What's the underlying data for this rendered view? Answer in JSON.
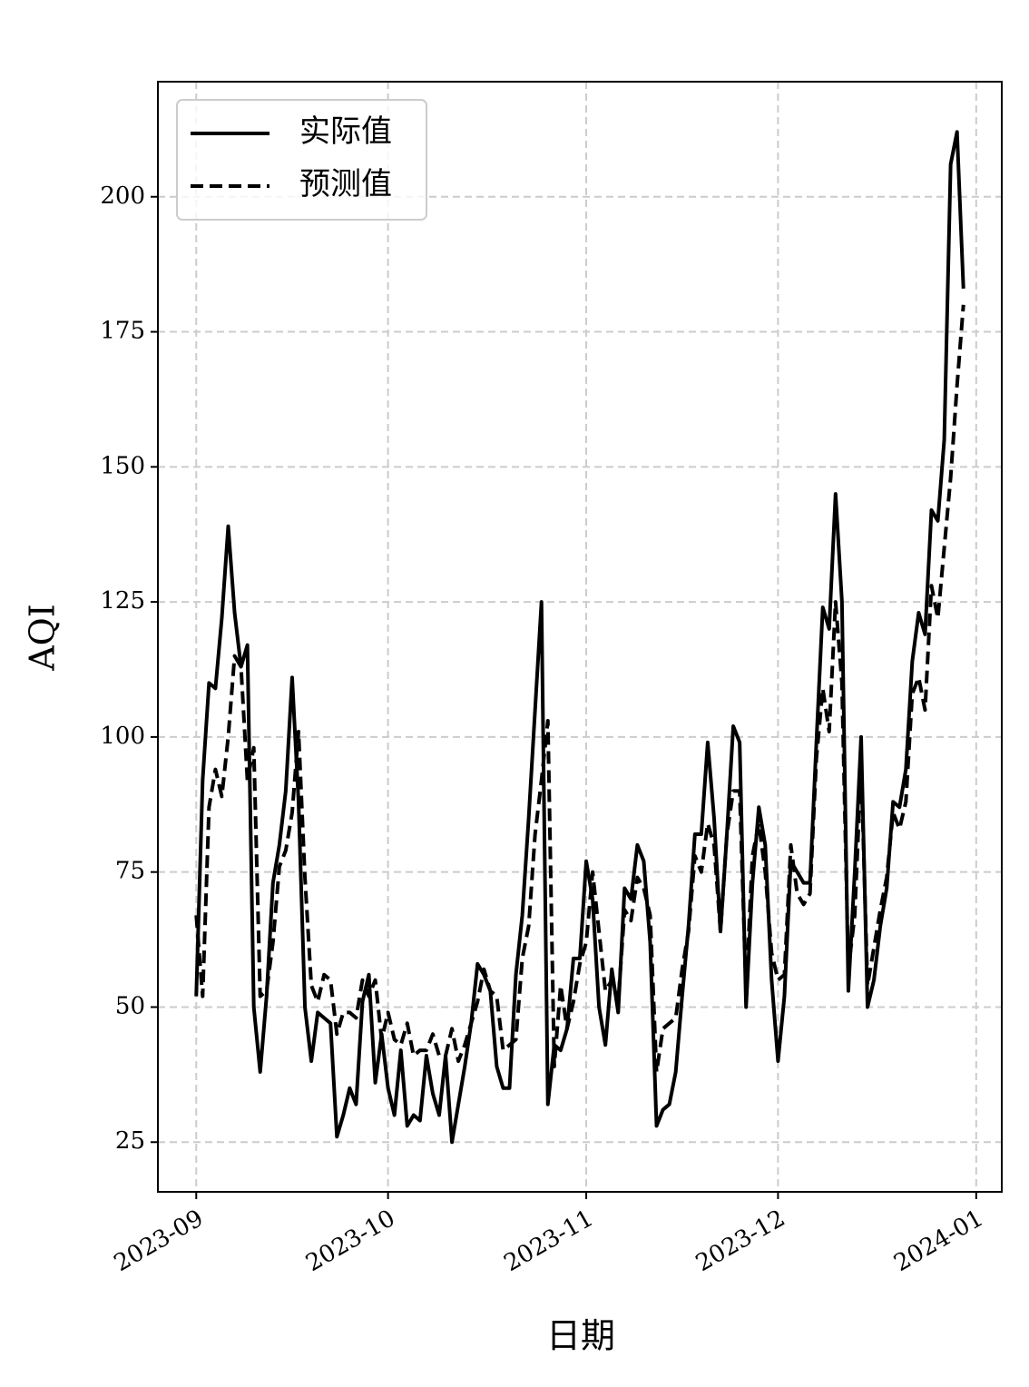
{
  "chart_data": {
    "type": "line",
    "x_label": "日期",
    "y_label": "AQI",
    "x": [
      0,
      1,
      2,
      3,
      4,
      5,
      6,
      7,
      8,
      9,
      10,
      11,
      12,
      13,
      14,
      15,
      16,
      17,
      18,
      19,
      20,
      21,
      22,
      23,
      24,
      25,
      26,
      27,
      28,
      29,
      30,
      31,
      32,
      33,
      34,
      35,
      36,
      37,
      38,
      39,
      40,
      41,
      42,
      43,
      44,
      45,
      46,
      47,
      48,
      49,
      50,
      51,
      52,
      53,
      54,
      55,
      56,
      57,
      58,
      59,
      60,
      61,
      62,
      63,
      64,
      65,
      66,
      67,
      68,
      69,
      70,
      71,
      72,
      73,
      74,
      75,
      76,
      77,
      78,
      79,
      80,
      81,
      82,
      83,
      84,
      85,
      86,
      87,
      88,
      89,
      90,
      91,
      92,
      93,
      94,
      95,
      96,
      97,
      98,
      99,
      100,
      101,
      102,
      103,
      104,
      105,
      106,
      107,
      108,
      109,
      110,
      111,
      112,
      113,
      114,
      115,
      116,
      117,
      118,
      119,
      120
    ],
    "series": [
      {
        "name": "实际值",
        "color": "#000000",
        "linestyle": "solid",
        "values": [
          52,
          92,
          110,
          109,
          122,
          139,
          123,
          113,
          117,
          50,
          38,
          52,
          73,
          80,
          90,
          111,
          88,
          50,
          40,
          49,
          48,
          47,
          26,
          30,
          35,
          32,
          51,
          56,
          36,
          45,
          35,
          30,
          42,
          28,
          30,
          29,
          41,
          34,
          30,
          41,
          25,
          32,
          39,
          47,
          58,
          56,
          53,
          39,
          35,
          35,
          56,
          67,
          85,
          105,
          125,
          32,
          43,
          42,
          46,
          59,
          59,
          77,
          70,
          50,
          43,
          57,
          49,
          72,
          70,
          80,
          77,
          62,
          28,
          31,
          32,
          38,
          52,
          65,
          82,
          82,
          99,
          85,
          64,
          82,
          102,
          99,
          50,
          73,
          87,
          80,
          55,
          40,
          52,
          77,
          75,
          73,
          73,
          99,
          124,
          120,
          145,
          125,
          53,
          75,
          100,
          50,
          55,
          65,
          72,
          88,
          87,
          94,
          114,
          123,
          119,
          142,
          140,
          155,
          206,
          212,
          183
        ]
      },
      {
        "name": "预测值",
        "color": "#000000",
        "linestyle": "dashed",
        "values": [
          67,
          52,
          87,
          94,
          89,
          100,
          115,
          113,
          92,
          98,
          52,
          53,
          62,
          76,
          79,
          86,
          101,
          74,
          54,
          51,
          56,
          55,
          45,
          49,
          49,
          48,
          55,
          52,
          55,
          44,
          49,
          44,
          43,
          47,
          41,
          42,
          42,
          45,
          41,
          41,
          46,
          40,
          43,
          47,
          51,
          57,
          53,
          52,
          42,
          43,
          44,
          59,
          65,
          82,
          92,
          103,
          39,
          54,
          46,
          51,
          58,
          62,
          75,
          64,
          53,
          55,
          51,
          68,
          66,
          74,
          72,
          67,
          38,
          46,
          47,
          48,
          57,
          64,
          78,
          75,
          84,
          80,
          64,
          82,
          90,
          90,
          53,
          78,
          84,
          75,
          60,
          55,
          56,
          80,
          71,
          69,
          71,
          96,
          109,
          101,
          125,
          110,
          57,
          67,
          95,
          54,
          61,
          68,
          74,
          86,
          83,
          88,
          108,
          111,
          105,
          128,
          122,
          135,
          148,
          165,
          180
        ]
      }
    ],
    "xlim": [
      -6,
      126
    ],
    "xticks": [
      {
        "value": 0,
        "label": "2023-09"
      },
      {
        "value": 30,
        "label": "2023-10"
      },
      {
        "value": 61,
        "label": "2023-11"
      },
      {
        "value": 91,
        "label": "2023-12"
      },
      {
        "value": 122,
        "label": "2024-01"
      }
    ],
    "ylim": [
      15.8,
      221.3
    ],
    "yticks": [
      25,
      50,
      75,
      100,
      125,
      150,
      175,
      200
    ],
    "grid": true,
    "legend": "upper left"
  }
}
